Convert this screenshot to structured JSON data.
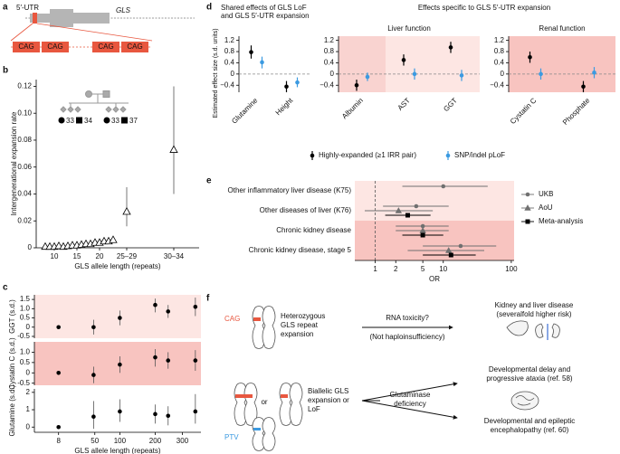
{
  "panel_labels": {
    "a": "a",
    "b": "b",
    "c": "c",
    "d": "d",
    "e": "e",
    "f": "f"
  },
  "gene_diagram": {
    "utr": "5′-UTR",
    "gene": "GLS",
    "repeats": [
      "CAG",
      "CAG",
      "CAG",
      "CAG"
    ]
  },
  "pedigree": {
    "labels": [
      "33",
      "34",
      "33",
      "37"
    ]
  },
  "d_header": "Effects specific to GLS 5′-UTR expansion",
  "chart_data": [
    {
      "type": "scatter",
      "ylabel": "Intergenerational expansion rate",
      "xlabel": "GLS allele length (repeats)",
      "categories": [
        null,
        null,
        "10",
        null,
        null,
        null,
        null,
        "15",
        null,
        null,
        null,
        null,
        "20",
        null,
        null,
        null,
        "25–29",
        "30–34"
      ],
      "values": [
        0.001,
        0.001,
        0.001,
        0.0015,
        0.001,
        0.0015,
        0.002,
        0.002,
        0.0025,
        0.003,
        0.003,
        0.004,
        0.004,
        0.005,
        0.005,
        0.006,
        0.027,
        0.073
      ],
      "lower": [
        null,
        null,
        null,
        null,
        null,
        null,
        null,
        null,
        null,
        null,
        null,
        null,
        null,
        null,
        null,
        null,
        0.016,
        0.04
      ],
      "upper": [
        null,
        null,
        null,
        null,
        null,
        null,
        null,
        null,
        null,
        null,
        null,
        null,
        null,
        null,
        null,
        null,
        0.045,
        0.12
      ],
      "marker": "triangle-open",
      "color": "#000000",
      "ylim": [
        0,
        0.125
      ],
      "yticks": [
        0,
        0.02,
        0.04,
        0.06,
        0.08,
        {
          "value": 0.1,
          "label": "0.10"
        },
        0.12
      ]
    },
    {
      "type": "scatter",
      "ylabel": "GGT (s.d.)",
      "x": [
        8,
        48,
        100,
        200,
        245,
        355
      ],
      "values": [
        0,
        0,
        0.5,
        1.2,
        0.85,
        1.1
      ],
      "lower": [
        null,
        -0.4,
        0.1,
        0.8,
        0.5,
        0.6
      ],
      "upper": [
        null,
        0.4,
        0.9,
        1.55,
        1.2,
        1.6
      ],
      "marker": "circle",
      "color": "#000000",
      "background": "#fde6e3",
      "xscale": "sqrt",
      "xlim": [
        0,
        380
      ],
      "ylim": [
        -0.6,
        1.75
      ],
      "yticks": [
        -0.5,
        0,
        0.5,
        {
          "value": 1,
          "label": "1.0"
        },
        1.5
      ]
    },
    {
      "type": "scatter",
      "ylabel": "Cystatin C (s.d.)",
      "x": [
        8,
        48,
        100,
        200,
        245,
        355
      ],
      "values": [
        0,
        -0.1,
        0.4,
        0.75,
        0.6,
        0.6
      ],
      "lower": [
        null,
        -0.5,
        0,
        0.3,
        0.2,
        0.1
      ],
      "upper": [
        null,
        0.3,
        0.8,
        1.15,
        1.0,
        1.1
      ],
      "marker": "circle",
      "color": "#000000",
      "background": "#f8c4c0",
      "xscale": "sqrt",
      "xlim": [
        0,
        380
      ],
      "ylim": [
        -0.6,
        1.5
      ],
      "yticks": [
        -0.5,
        0,
        0.5,
        {
          "value": 1,
          "label": "1.0"
        }
      ]
    },
    {
      "type": "scatter",
      "ylabel": "Glutamine (s.d.)",
      "xlabel": "GLS allele length (repeats)",
      "x": [
        8,
        48,
        100,
        200,
        245,
        355
      ],
      "values": [
        0,
        0.6,
        0.9,
        0.75,
        0.65,
        0.9
      ],
      "lower": [
        null,
        -0.1,
        0.3,
        0.2,
        0.1,
        0.2
      ],
      "upper": [
        null,
        1.5,
        1.6,
        1.3,
        1.2,
        1.9
      ],
      "marker": "circle",
      "color": "#000000",
      "xscale": "sqrt",
      "xlim": [
        0,
        380
      ],
      "xticks": [
        8,
        50,
        100,
        200,
        300
      ],
      "ylim": [
        -0.3,
        2.2
      ],
      "yticks": [
        0,
        1,
        2
      ]
    },
    {
      "type": "errorbar",
      "title": [
        "Shared effects of GLS LoF",
        "and GLS 5′-UTR expansion"
      ],
      "ylabel": "Estimated effect size (s.d. units)",
      "categories": [
        "Glutamine",
        "Height"
      ],
      "reference_line": 0,
      "series": [
        {
          "name": "Highly-expanded (≥1 IRR pair)",
          "color": "#000000",
          "values": [
            0.78,
            -0.45
          ],
          "lower": [
            0.55,
            -0.65
          ],
          "upper": [
            1.02,
            -0.25
          ]
        },
        {
          "name": "SNP/indel pLoF",
          "color": "#3b9ae1",
          "values": [
            0.42,
            -0.3
          ],
          "lower": [
            0.2,
            -0.47
          ],
          "upper": [
            0.62,
            -0.12
          ]
        }
      ],
      "ylim": [
        -0.65,
        1.35
      ],
      "yticks": [
        {
          "value": -0.4,
          "label": "−0.4"
        },
        0,
        0.4,
        0.8,
        1.2
      ]
    },
    {
      "type": "errorbar",
      "subtitle": "Liver function",
      "categories": [
        "Albumin",
        "AST",
        "GGT"
      ],
      "reference_line": 0,
      "band_colors": [
        "#f9d3d0",
        "#fde6e3",
        "#fde6e3"
      ],
      "series": [
        {
          "color": "#000000",
          "values": [
            -0.4,
            0.5,
            0.95
          ],
          "lower": [
            -0.6,
            0.3,
            0.75
          ],
          "upper": [
            -0.2,
            0.7,
            1.15
          ]
        },
        {
          "color": "#3b9ae1",
          "values": [
            -0.1,
            0,
            -0.05
          ],
          "lower": [
            -0.25,
            -0.2,
            -0.25
          ],
          "upper": [
            0.05,
            0.2,
            0.15
          ]
        }
      ],
      "ylim": [
        -0.65,
        1.35
      ],
      "yticks": [
        {
          "value": -0.4,
          "label": "−0.4"
        },
        0,
        0.4,
        0.8,
        1.2
      ]
    },
    {
      "type": "errorbar",
      "subtitle": "Renal function",
      "categories": [
        "Cystatin C",
        "Phosphate"
      ],
      "reference_line": 0,
      "band_colors": [
        "#f8c4c0",
        "#f8c4c0"
      ],
      "series": [
        {
          "color": "#000000",
          "values": [
            0.6,
            -0.45
          ],
          "lower": [
            0.4,
            -0.65
          ],
          "upper": [
            0.8,
            -0.25
          ]
        },
        {
          "color": "#3b9ae1",
          "values": [
            0,
            0.05
          ],
          "lower": [
            -0.2,
            -0.15
          ],
          "upper": [
            0.2,
            0.25
          ]
        }
      ],
      "ylim": [
        -0.65,
        1.35
      ],
      "yticks": [
        {
          "value": -0.4,
          "label": "−0.4"
        },
        0,
        0.4,
        0.8,
        1.2
      ]
    },
    {
      "type": "forest",
      "xlabel": "OR",
      "xscale": "log",
      "xlim": [
        0.5,
        110
      ],
      "xticks": [
        1,
        2,
        5,
        10,
        100
      ],
      "reference_line": 1,
      "categories": [
        "Other inflammatory liver disease (K75)",
        "Other diseases of liver (K76)",
        "Chronic kidney disease",
        "Chronic kidney disease, stage 5"
      ],
      "band_colors": [
        "#fde6e3",
        "#fde6e3",
        "#f8c4c0",
        "#f8c4c0"
      ],
      "series": [
        {
          "name": "UKB",
          "color": "#707070",
          "marker": "circle",
          "values": [
            10,
            4,
            5,
            18
          ],
          "lower": [
            2.5,
            1.3,
            2,
            5
          ],
          "upper": [
            45,
            12,
            12,
            60
          ]
        },
        {
          "name": "AoU",
          "color": "#707070",
          "marker": "triangle",
          "values": [
            null,
            2.2,
            5,
            12
          ],
          "lower": [
            null,
            0.7,
            2,
            3
          ],
          "upper": [
            null,
            7,
            12,
            40
          ]
        },
        {
          "name": "Meta-analysis",
          "color": "#000000",
          "marker": "square",
          "values": [
            null,
            3,
            5,
            13
          ],
          "lower": [
            null,
            1.4,
            2.5,
            5
          ],
          "upper": [
            null,
            6.5,
            10,
            30
          ]
        }
      ]
    }
  ],
  "diagram": {
    "cag": "CAG",
    "heterozygous": [
      "Heterozygous",
      "GLS repeat",
      "expansion"
    ],
    "rna": "RNA toxicity?",
    "not_haplo": "(Not haploinsufficiency)",
    "outcome1": [
      "Kidney and liver disease",
      "(severalfold higher risk)"
    ],
    "or": "or",
    "biallelic": [
      "Biallelic GLS",
      "expansion or",
      "LoF"
    ],
    "ptv": "PTV",
    "glutaminase": [
      "Glutaminase",
      "deficiency"
    ],
    "outcome2": [
      "Developmental delay and",
      "progressive ataxia (ref. 58)"
    ],
    "outcome3": [
      "Developmental and epileptic",
      "encephalopathy (ref. 60)"
    ]
  }
}
